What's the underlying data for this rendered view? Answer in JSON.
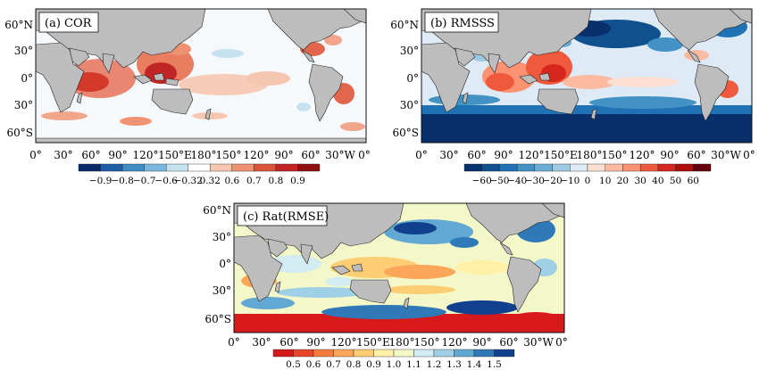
{
  "panels": [
    {
      "id": "cor",
      "title": "(a) COR",
      "lat_labels": [
        "60°N",
        "30°",
        "0°",
        "30°",
        "60°S"
      ],
      "lon_labels": [
        "0°",
        "30°",
        "60°",
        "90°",
        "120°",
        "150°E",
        "180°",
        "150°",
        "120°",
        "90°",
        "60°",
        "30°W",
        "0°"
      ],
      "colorbar": {
        "labels": [
          "−0.9",
          "−0.8",
          "−0.7",
          "−0.6",
          "−0.32",
          "0.32",
          "0.6",
          "0.7",
          "0.8",
          "0.9"
        ],
        "colors": [
          "#0b2a6b",
          "#1f5da8",
          "#3f8cc4",
          "#79b8dc",
          "#c6e2f1",
          "#ffffff",
          "#f6c7b0",
          "#ee9271",
          "#dc5439",
          "#c22525",
          "#8e1010"
        ]
      }
    },
    {
      "id": "rmsss",
      "title": "(b) RMSSS",
      "lat_labels": [
        "60°N",
        "30°",
        "0°",
        "30°",
        "60°S"
      ],
      "lon_labels": [
        "0°",
        "30°",
        "60°",
        "90°",
        "120°",
        "150°E",
        "180°",
        "150°",
        "120°",
        "90°",
        "60°",
        "30°W",
        "0°"
      ],
      "colorbar": {
        "labels": [
          "−60",
          "−50",
          "−40",
          "−30",
          "−20",
          "−10",
          "0",
          "10",
          "20",
          "30",
          "40",
          "50",
          "60"
        ],
        "colors": [
          "#08306b",
          "#11508f",
          "#2171b5",
          "#4292c6",
          "#6baed6",
          "#9ecae1",
          "#deebf7",
          "#fde0d2",
          "#fcbba1",
          "#fc9272",
          "#ef5a3c",
          "#d7261e",
          "#b00d0d",
          "#67000d"
        ]
      }
    },
    {
      "id": "rat",
      "title": "(c) Rat(RMSE)",
      "lat_labels": [
        "60°N",
        "30°",
        "0°",
        "30°",
        "60°S"
      ],
      "lon_labels": [
        "0°",
        "30°",
        "60°",
        "90°",
        "120°",
        "150°E",
        "180°",
        "150°",
        "120°",
        "90°",
        "60°",
        "30°W",
        "0°"
      ],
      "colorbar": {
        "labels": [
          "0.5",
          "0.6",
          "0.7",
          "0.8",
          "0.9",
          "1.0",
          "1.1",
          "1.2",
          "1.3",
          "1.4",
          "1.5"
        ],
        "colors": [
          "#d7191c",
          "#e8452a",
          "#f57b3d",
          "#fba658",
          "#fdcd74",
          "#fef0a4",
          "#f4f8c8",
          "#d2ecf2",
          "#9fd0e6",
          "#61a9d2",
          "#2f79b9",
          "#11408f"
        ]
      }
    }
  ],
  "styles": {
    "land": "#bdbdbd",
    "ocean": "#dceaf3",
    "frame": "#111111"
  }
}
